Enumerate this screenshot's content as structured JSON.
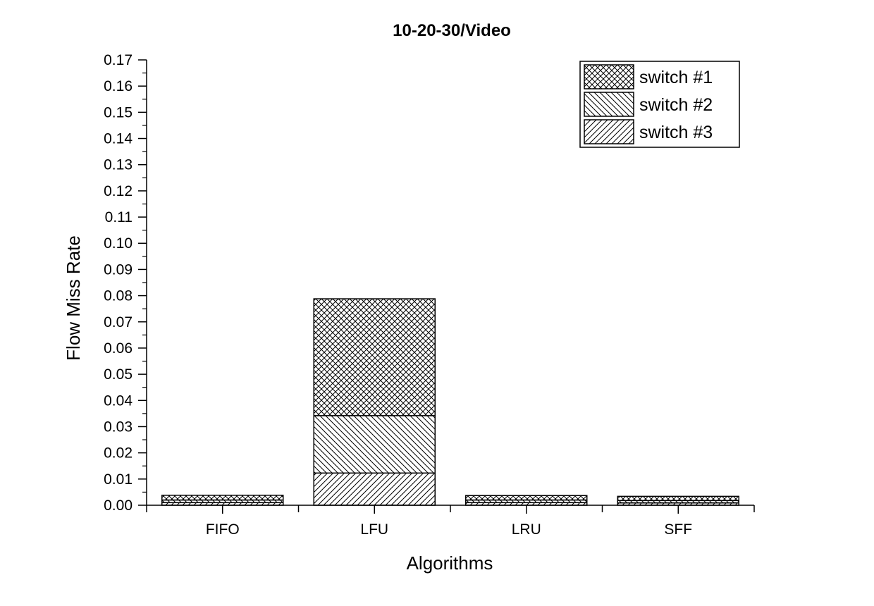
{
  "chart_data": {
    "type": "bar",
    "stacked": true,
    "title": "10-20-30/Video",
    "xlabel": "Algorithms",
    "ylabel": "Flow Miss Rate",
    "categories": [
      "FIFO",
      "LFU",
      "LRU",
      "SFF"
    ],
    "ylim": [
      0,
      0.17
    ],
    "yticks": [
      "0.00",
      "0.01",
      "0.02",
      "0.03",
      "0.04",
      "0.05",
      "0.06",
      "0.07",
      "0.08",
      "0.09",
      "0.10",
      "0.11",
      "0.12",
      "0.13",
      "0.14",
      "0.15",
      "0.16",
      "0.17"
    ],
    "legend_position": "top-right",
    "grid": false,
    "series": [
      {
        "name": "switch #3",
        "pattern": "forward-diagonal",
        "values": [
          0.001,
          0.0123,
          0.001,
          0.0009
        ]
      },
      {
        "name": "switch #2",
        "pattern": "back-diagonal",
        "values": [
          0.001,
          0.0219,
          0.001,
          0.0009
        ]
      },
      {
        "name": "switch #1",
        "pattern": "crosshatch",
        "values": [
          0.0018,
          0.0446,
          0.0017,
          0.0016
        ]
      }
    ],
    "legend_order": [
      "switch #1",
      "switch #2",
      "switch #3"
    ]
  },
  "colors": {
    "ink": "#000000",
    "background": "#ffffff"
  }
}
